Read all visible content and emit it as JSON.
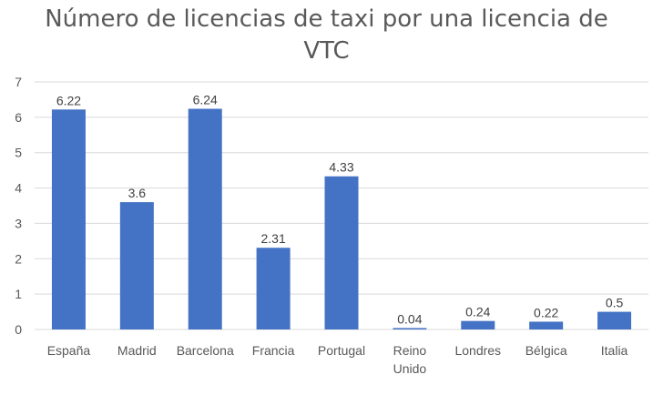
{
  "chart_data": {
    "type": "bar",
    "title_lines": [
      "Número de licencias de taxi por una licencia de",
      "VTC"
    ],
    "categories": [
      [
        "España"
      ],
      [
        "Madrid"
      ],
      [
        "Barcelona"
      ],
      [
        "Francia"
      ],
      [
        "Portugal"
      ],
      [
        "Reino",
        "Unido"
      ],
      [
        "Londres"
      ],
      [
        "Bélgica"
      ],
      [
        "Italia"
      ]
    ],
    "values": [
      6.22,
      3.6,
      6.24,
      2.31,
      4.33,
      0.04,
      0.24,
      0.22,
      0.5
    ],
    "data_labels": [
      "6.22",
      "3.6",
      "6.24",
      "2.31",
      "4.33",
      "0.04",
      "0.24",
      "0.22",
      "0.5"
    ],
    "ylim": [
      0,
      7
    ],
    "yticks": [
      0,
      1,
      2,
      3,
      4,
      5,
      6,
      7
    ],
    "grid": true,
    "bar_color": "#4472C4",
    "grid_color": "#D9D9D9"
  }
}
